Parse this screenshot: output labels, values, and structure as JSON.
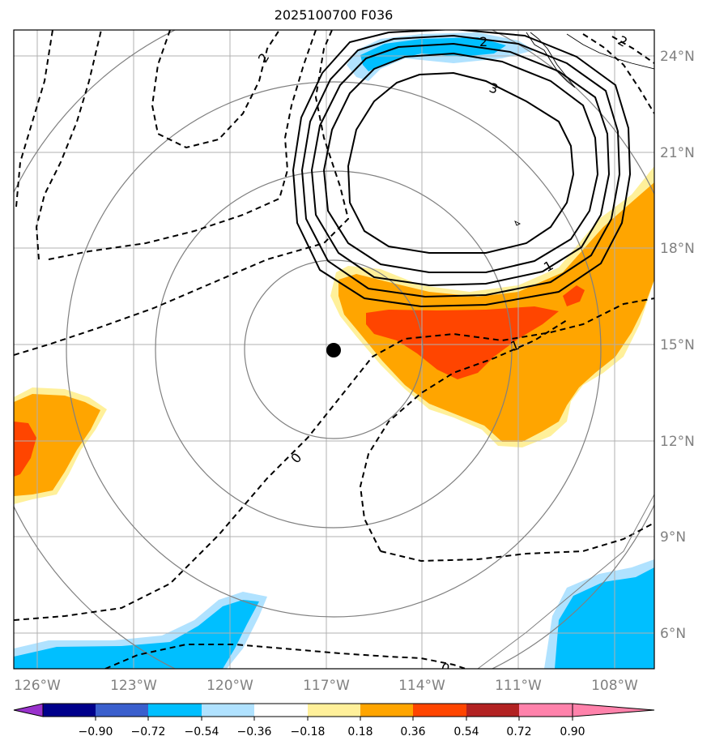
{
  "title": "2025100700 F036",
  "lat_labels": [
    "24°N",
    "21°N",
    "18°N",
    "15°N",
    "12°N",
    "9°N",
    "6°N"
  ],
  "lon_labels": [
    "126°W",
    "123°W",
    "120°W",
    "117°W",
    "114°W",
    "111°W",
    "108°W"
  ],
  "colorbar": {
    "colors": [
      "#9932cc",
      "#00008b",
      "#3a5fcd",
      "#00bfff",
      "#b0e2ff",
      "#ffffff",
      "#fff09a",
      "#ffa500",
      "#ff4500",
      "#b22222",
      "#ff82ab"
    ],
    "tick_labels": [
      "−0.90",
      "−0.72",
      "−0.54",
      "−0.36",
      "−0.18",
      "0.18",
      "0.36",
      "0.54",
      "0.72",
      "0.90"
    ]
  },
  "contour_labels": [
    {
      "text": "2"
    },
    {
      "text": "2"
    },
    {
      "text": "3"
    },
    {
      "text": "1"
    },
    {
      "text": "1"
    },
    {
      "text": "0"
    },
    {
      "text": "0"
    },
    {
      "text": "2"
    }
  ],
  "storm_center": {
    "lat": "14.9°N",
    "lon": "116.8°W"
  },
  "colors": {
    "grid": "#b0b0b0",
    "axis_text": "#808080",
    "ring": "#808080"
  }
}
